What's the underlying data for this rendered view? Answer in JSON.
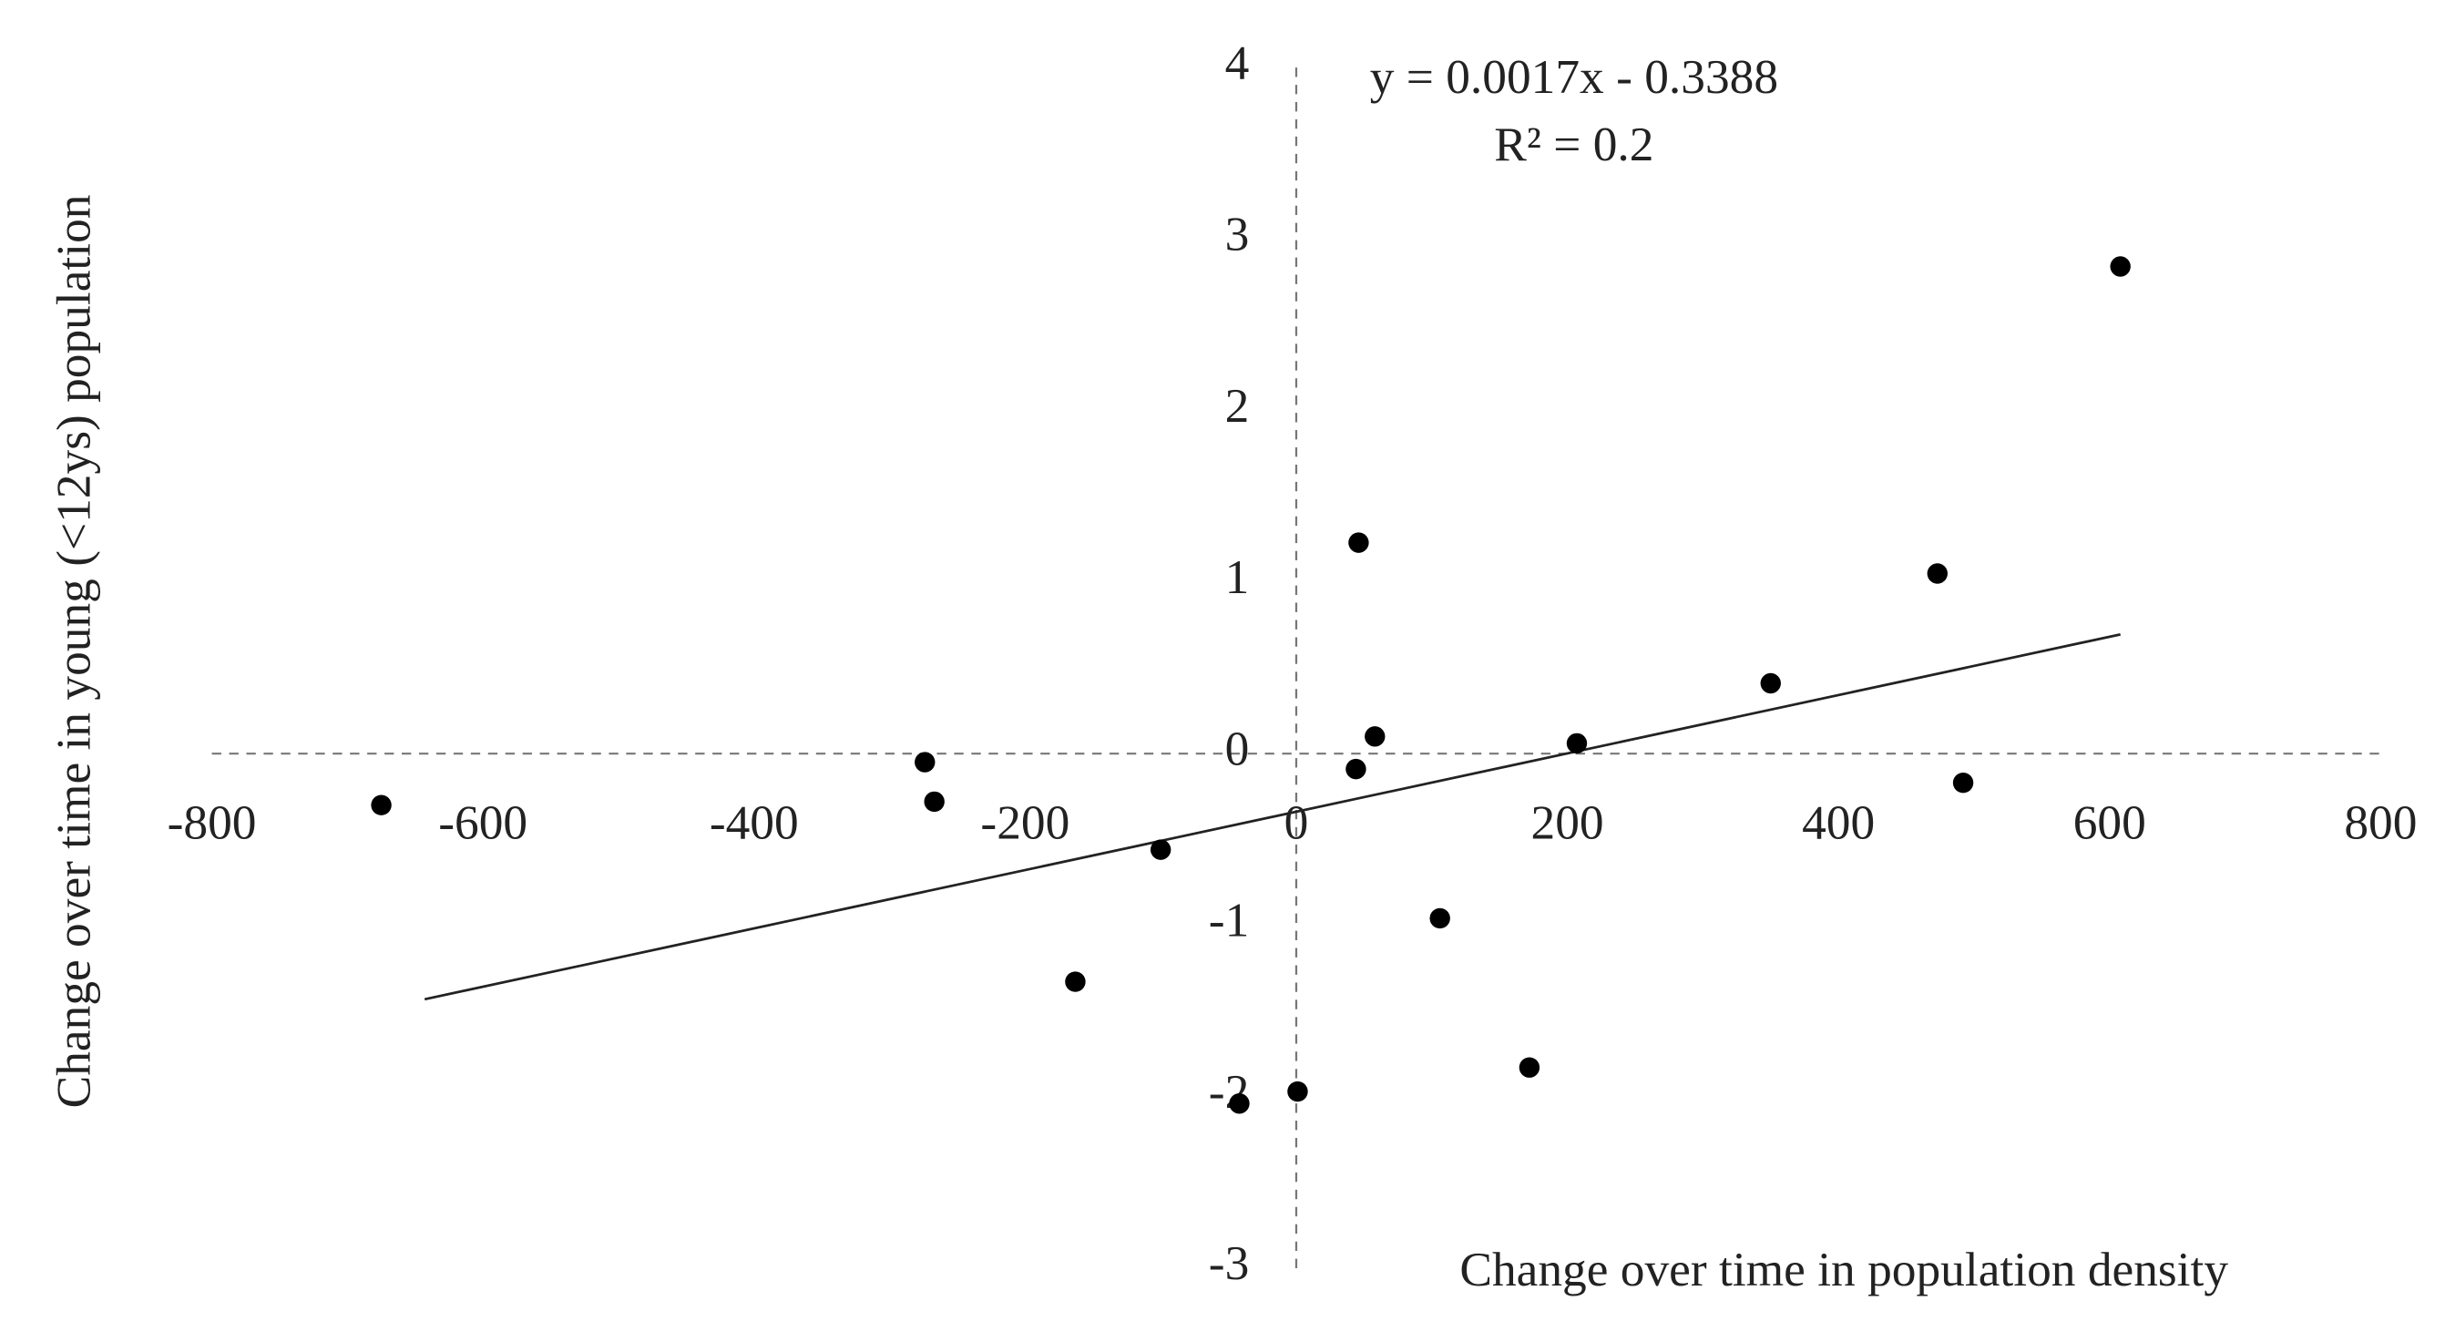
{
  "chart_data": {
    "type": "scatter",
    "x_label": "Change over time in population density",
    "y_label": "Change over time in young (<12ys) population",
    "annotations": [
      "y = 0.0017x - 0.3388",
      "R² = 0.2"
    ],
    "x": [
      -675,
      -274,
      -267,
      -163,
      -100,
      -42,
      1,
      44,
      46,
      58,
      106,
      172,
      207,
      350,
      473,
      492,
      608
    ],
    "values": [
      -0.3,
      -0.05,
      -0.28,
      -1.33,
      -0.56,
      -2.04,
      -1.97,
      -0.09,
      1.23,
      0.1,
      -0.96,
      -1.83,
      0.06,
      0.41,
      1.05,
      -0.17,
      2.84
    ],
    "color": "#000000",
    "trendline": {
      "x": [
        -643,
        608
      ],
      "y": [
        -1.432,
        0.695
      ],
      "color": "#222222"
    },
    "xlim": [
      -800,
      800
    ],
    "ylim": [
      -3,
      4
    ],
    "xticks": [
      -800,
      -600,
      -400,
      -200,
      0,
      200,
      400,
      600,
      800
    ],
    "yticks": [
      -3,
      -2,
      -1,
      0,
      1,
      2,
      3,
      4
    ]
  }
}
